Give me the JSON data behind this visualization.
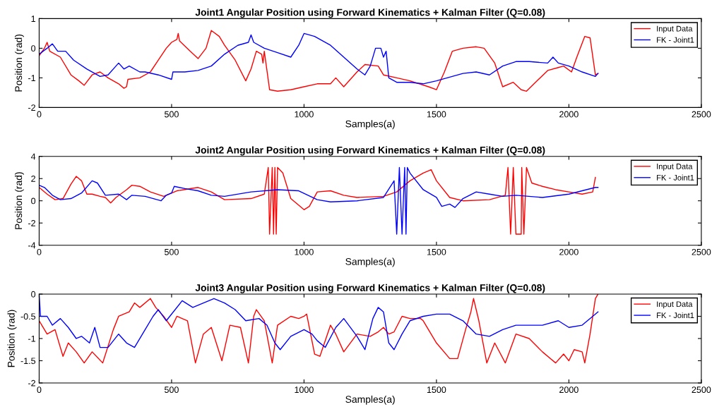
{
  "chart_data": [
    {
      "type": "line",
      "title": "Joint1 Angular Position using Forward Kinematics + Kalman Filter (Q=0.08)",
      "xlabel": "Samples(a)",
      "ylabel": "Position (rad)",
      "xlim": [
        0,
        2500
      ],
      "xticks": [
        0,
        500,
        1000,
        1500,
        2000,
        2500
      ],
      "ylim": [
        -2,
        1
      ],
      "yticks": [
        -2,
        -1,
        0,
        1
      ],
      "grid": false,
      "legend": "top right",
      "series": [
        {
          "name": "Input Data",
          "color": "#ff0000",
          "x": [
            0,
            20,
            30,
            40,
            80,
            120,
            150,
            170,
            200,
            230,
            260,
            300,
            320,
            330,
            335,
            380,
            420,
            450,
            480,
            500,
            520,
            525,
            530,
            570,
            600,
            630,
            650,
            680,
            700,
            740,
            780,
            800,
            820,
            840,
            845,
            850,
            870,
            900,
            950,
            1000,
            1050,
            1100,
            1120,
            1150,
            1200,
            1230,
            1280,
            1300,
            1350,
            1400,
            1470,
            1500,
            1530,
            1560,
            1600,
            1650,
            1680,
            1720,
            1750,
            1790,
            1820,
            1840,
            1880,
            1920,
            1960,
            1980,
            2010,
            2030,
            2060,
            2080,
            2100,
            2110
          ],
          "values": [
            -0.25,
            0.0,
            0.2,
            -0.1,
            -0.3,
            -0.9,
            -1.1,
            -1.25,
            -0.9,
            -0.8,
            -1.0,
            -1.2,
            -1.35,
            -1.3,
            -1.05,
            -1.0,
            -0.8,
            -0.4,
            0.0,
            0.2,
            0.3,
            0.5,
            0.25,
            -0.1,
            -0.35,
            0.0,
            0.6,
            0.4,
            0.1,
            -0.4,
            -1.1,
            -0.7,
            -0.1,
            -0.2,
            -0.5,
            -0.1,
            -1.4,
            -1.45,
            -1.4,
            -1.3,
            -1.2,
            -1.2,
            -1.0,
            -1.3,
            -0.8,
            -0.55,
            -0.6,
            -0.9,
            -1.0,
            -1.1,
            -1.3,
            -1.4,
            -0.8,
            -0.1,
            0.0,
            0.05,
            0.0,
            -0.5,
            -1.3,
            -1.15,
            -1.4,
            -1.45,
            -1.1,
            -0.75,
            -0.65,
            -0.6,
            -0.8,
            -0.3,
            0.4,
            0.35,
            -0.9,
            -0.85
          ]
        },
        {
          "name": "FK - Joint1",
          "color": "#0000ff",
          "x": [
            0,
            30,
            50,
            70,
            100,
            130,
            180,
            230,
            260,
            290,
            300,
            320,
            340,
            380,
            400,
            450,
            500,
            505,
            550,
            600,
            650,
            700,
            750,
            790,
            800,
            810,
            850,
            900,
            950,
            980,
            1000,
            1040,
            1100,
            1150,
            1200,
            1230,
            1250,
            1270,
            1290,
            1300,
            1310,
            1320,
            1350,
            1400,
            1450,
            1500,
            1600,
            1650,
            1700,
            1750,
            1800,
            1850,
            1920,
            1940,
            1960,
            2000,
            2050,
            2100,
            2110
          ],
          "values": [
            -0.2,
            0.0,
            0.15,
            -0.1,
            -0.1,
            -0.4,
            -0.7,
            -0.95,
            -0.9,
            -0.6,
            -0.5,
            -0.7,
            -0.6,
            -0.8,
            -0.8,
            -0.9,
            -1.05,
            -0.8,
            -0.8,
            -0.75,
            -0.6,
            -0.2,
            0.1,
            0.2,
            0.45,
            0.2,
            0.0,
            -0.15,
            -0.3,
            0.1,
            0.5,
            0.4,
            0.1,
            -0.3,
            -0.7,
            -0.9,
            -0.6,
            0.0,
            0.0,
            -0.3,
            -0.1,
            -1.0,
            -1.15,
            -1.15,
            -1.2,
            -1.1,
            -0.85,
            -0.8,
            -0.9,
            -0.6,
            -0.45,
            -0.45,
            -0.5,
            -0.3,
            -0.5,
            -0.6,
            -0.8,
            -0.95,
            -0.85
          ]
        }
      ]
    },
    {
      "type": "line",
      "title": "Joint2 Angular Position using Forward Kinematics + Kalman Filter (Q=0.08)",
      "xlabel": "Samples(a)",
      "ylabel": "Position (rad)",
      "xlim": [
        0,
        2500
      ],
      "xticks": [
        0,
        500,
        1000,
        1500,
        2000,
        2500
      ],
      "ylim": [
        -4,
        4
      ],
      "yticks": [
        -4,
        -2,
        0,
        2,
        4
      ],
      "grid": false,
      "legend": "top right",
      "series": [
        {
          "name": "Input Data",
          "color": "#ff0000",
          "x": [
            0,
            30,
            60,
            90,
            120,
            140,
            160,
            180,
            200,
            230,
            250,
            270,
            290,
            330,
            350,
            380,
            420,
            470,
            520,
            600,
            650,
            700,
            800,
            850,
            865,
            870,
            880,
            885,
            890,
            895,
            900,
            920,
            950,
            1000,
            1020,
            1050,
            1100,
            1150,
            1200,
            1300,
            1350,
            1400,
            1450,
            1480,
            1500,
            1550,
            1600,
            1700,
            1760,
            1770,
            1780,
            1790,
            1800,
            1820,
            1822,
            1830,
            1840,
            1860,
            1900,
            1950,
            2000,
            2050,
            2090,
            2100
          ],
          "values": [
            1.2,
            0.6,
            0.1,
            0.2,
            1.5,
            2.2,
            1.8,
            0.6,
            0.6,
            0.4,
            0.3,
            -0.2,
            0.3,
            1.0,
            1.4,
            1.3,
            0.8,
            0.4,
            0.9,
            1.2,
            0.8,
            0.1,
            0.2,
            0.6,
            3.0,
            -3.0,
            3.0,
            -3.0,
            3.0,
            -3.0,
            3.0,
            2.5,
            0.2,
            -0.8,
            -0.5,
            0.8,
            0.9,
            0.5,
            0.3,
            0.4,
            0.8,
            1.8,
            2.5,
            2.8,
            1.8,
            0.3,
            0.0,
            0.1,
            0.5,
            3.0,
            -3.0,
            3.0,
            -3.0,
            -3.0,
            3.0,
            -3.0,
            3.0,
            1.6,
            1.3,
            1.0,
            0.8,
            0.6,
            0.8,
            2.1
          ]
        },
        {
          "name": "FK - Joint1",
          "color": "#0000ff",
          "x": [
            0,
            20,
            50,
            80,
            120,
            160,
            200,
            220,
            250,
            300,
            330,
            350,
            400,
            460,
            480,
            500,
            510,
            550,
            600,
            650,
            700,
            800,
            900,
            980,
            1050,
            1100,
            1200,
            1300,
            1340,
            1350,
            1360,
            1370,
            1380,
            1385,
            1390,
            1400,
            1450,
            1500,
            1520,
            1550,
            1570,
            1600,
            1650,
            1700,
            1750,
            1800,
            1900,
            2000,
            2050,
            2100,
            2110
          ],
          "values": [
            1.4,
            1.2,
            0.5,
            0.1,
            0.2,
            0.7,
            1.8,
            1.6,
            0.5,
            0.6,
            0.1,
            0.5,
            0.4,
            0.0,
            0.5,
            0.7,
            1.3,
            1.1,
            0.9,
            0.5,
            0.4,
            0.8,
            1.0,
            0.9,
            0.1,
            -0.1,
            0.0,
            0.3,
            1.8,
            -3.0,
            3.0,
            -3.0,
            3.0,
            -3.0,
            3.0,
            2.5,
            1.0,
            0.3,
            -0.5,
            -0.3,
            -0.6,
            0.2,
            0.8,
            0.6,
            0.4,
            0.5,
            0.3,
            0.6,
            0.9,
            1.2,
            1.2
          ]
        }
      ]
    },
    {
      "type": "line",
      "title": "Joint3 Angular Position using Forward Kinematics + Kalman Filter (Q=0.08)",
      "xlabel": "Samples(a)",
      "ylabel": "Position (rad)",
      "xlim": [
        0,
        2500
      ],
      "xticks": [
        0,
        500,
        1000,
        1500,
        2000,
        2500
      ],
      "ylim": [
        -2,
        0
      ],
      "yticks": [
        -2,
        -1.5,
        -1,
        -0.5,
        0
      ],
      "grid": false,
      "legend": "top right",
      "series": [
        {
          "name": "Input Data",
          "color": "#ff0000",
          "x": [
            0,
            30,
            60,
            90,
            110,
            140,
            170,
            200,
            240,
            280,
            300,
            340,
            360,
            380,
            420,
            440,
            470,
            500,
            520,
            560,
            590,
            620,
            650,
            690,
            720,
            760,
            790,
            810,
            820,
            850,
            880,
            900,
            950,
            980,
            1000,
            1010,
            1040,
            1060,
            1100,
            1120,
            1150,
            1200,
            1250,
            1280,
            1300,
            1320,
            1340,
            1370,
            1400,
            1440,
            1450,
            1500,
            1550,
            1580,
            1610,
            1630,
            1640,
            1660,
            1690,
            1720,
            1760,
            1800,
            1850,
            1900,
            1950,
            1980,
            2000,
            2020,
            2050,
            2060,
            2080,
            2100,
            2110
          ],
          "values": [
            -0.6,
            -0.9,
            -0.8,
            -1.4,
            -1.1,
            -1.3,
            -1.55,
            -1.3,
            -1.55,
            -0.8,
            -0.5,
            -0.4,
            -0.2,
            -0.3,
            -0.1,
            -0.3,
            -0.5,
            -0.75,
            -0.5,
            -0.6,
            -1.55,
            -0.9,
            -0.75,
            -1.5,
            -0.7,
            -0.75,
            -1.55,
            -0.5,
            -0.35,
            -0.6,
            -1.55,
            -0.7,
            -0.5,
            -0.55,
            -0.5,
            -0.45,
            -1.35,
            -1.4,
            -0.7,
            -0.9,
            -1.3,
            -0.9,
            -0.95,
            -0.85,
            -0.75,
            -0.9,
            -0.85,
            -0.5,
            -0.55,
            -0.55,
            -0.6,
            -1.1,
            -1.45,
            -1.45,
            -0.8,
            -0.4,
            -0.1,
            -0.6,
            -1.55,
            -1.1,
            -1.55,
            -0.9,
            -1.0,
            -1.3,
            -1.55,
            -1.35,
            -1.5,
            -1.25,
            -1.3,
            -1.55,
            -0.9,
            -0.1,
            0.0
          ]
        },
        {
          "name": "FK - Joint1",
          "color": "#0000ff",
          "x": [
            0,
            5,
            30,
            50,
            80,
            110,
            140,
            160,
            190,
            210,
            230,
            260,
            300,
            330,
            360,
            400,
            430,
            450,
            480,
            540,
            580,
            620,
            660,
            700,
            740,
            780,
            830,
            860,
            890,
            910,
            950,
            1000,
            1030,
            1050,
            1080,
            1120,
            1150,
            1200,
            1230,
            1260,
            1280,
            1300,
            1320,
            1340,
            1370,
            1400,
            1450,
            1500,
            1550,
            1600,
            1650,
            1700,
            1750,
            1800,
            1900,
            1960,
            2000,
            2050,
            2090,
            2110
          ],
          "values": [
            0.0,
            -0.5,
            -0.5,
            -0.7,
            -0.55,
            -0.75,
            -1.0,
            -0.95,
            -1.1,
            -0.75,
            -1.2,
            -1.2,
            -0.9,
            -1.1,
            -1.2,
            -0.8,
            -0.5,
            -0.35,
            -0.6,
            -0.15,
            -0.3,
            -0.2,
            -0.1,
            -0.2,
            -0.35,
            -0.6,
            -0.55,
            -0.7,
            -1.1,
            -1.25,
            -0.95,
            -0.8,
            -0.9,
            -1.05,
            -1.2,
            -0.75,
            -0.55,
            -0.95,
            -1.25,
            -0.55,
            -0.3,
            -0.4,
            -1.1,
            -1.25,
            -0.9,
            -0.6,
            -0.5,
            -0.45,
            -0.45,
            -0.6,
            -0.9,
            -0.95,
            -0.8,
            -0.7,
            -0.7,
            -0.6,
            -0.75,
            -0.7,
            -0.5,
            -0.4
          ]
        }
      ]
    }
  ]
}
